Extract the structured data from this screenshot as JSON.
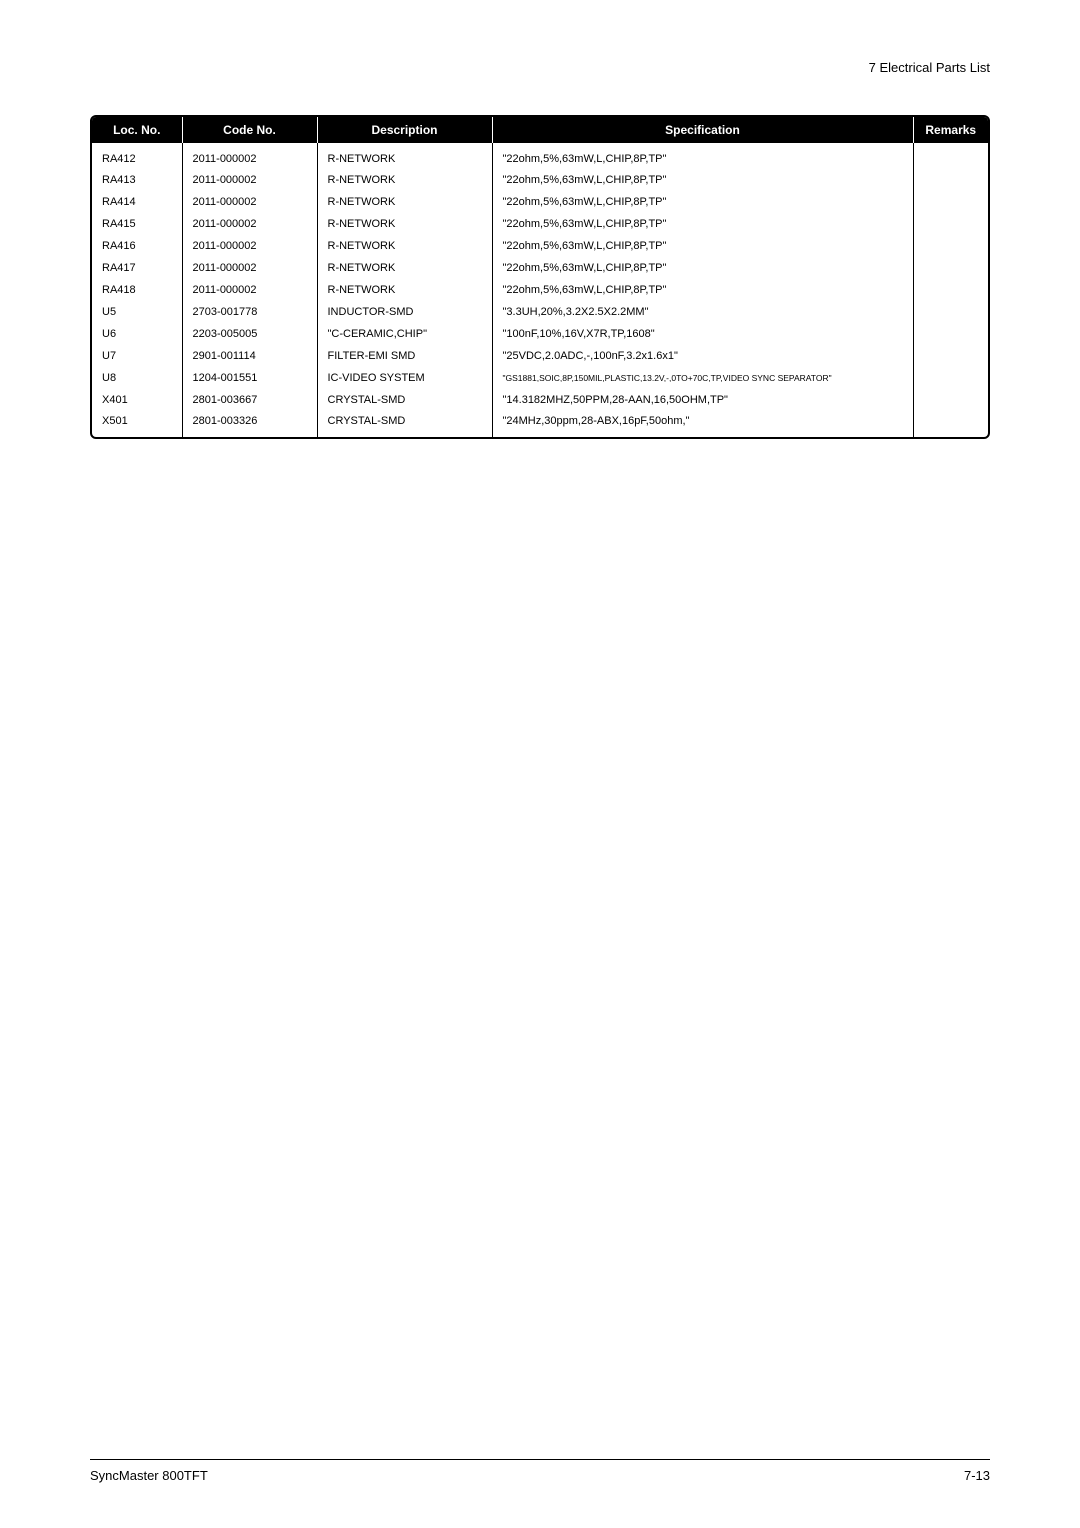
{
  "header": {
    "section_title": "7 Electrical Parts List"
  },
  "table": {
    "columns": {
      "loc": "Loc. No.",
      "code": "Code No.",
      "desc": "Description",
      "spec": "Specification",
      "remarks": "Remarks"
    },
    "rows": [
      {
        "loc": "RA412",
        "code": "2011-000002",
        "desc": "R-NETWORK",
        "spec": "\"22ohm,5%,63mW,L,CHIP,8P,TP\"",
        "remarks": "",
        "small": false
      },
      {
        "loc": "RA413",
        "code": "2011-000002",
        "desc": "R-NETWORK",
        "spec": "\"22ohm,5%,63mW,L,CHIP,8P,TP\"",
        "remarks": "",
        "small": false
      },
      {
        "loc": "RA414",
        "code": "2011-000002",
        "desc": "R-NETWORK",
        "spec": "\"22ohm,5%,63mW,L,CHIP,8P,TP\"",
        "remarks": "",
        "small": false
      },
      {
        "loc": "RA415",
        "code": "2011-000002",
        "desc": "R-NETWORK",
        "spec": "\"22ohm,5%,63mW,L,CHIP,8P,TP\"",
        "remarks": "",
        "small": false
      },
      {
        "loc": "RA416",
        "code": "2011-000002",
        "desc": "R-NETWORK",
        "spec": "\"22ohm,5%,63mW,L,CHIP,8P,TP\"",
        "remarks": "",
        "small": false
      },
      {
        "loc": "RA417",
        "code": "2011-000002",
        "desc": "R-NETWORK",
        "spec": "\"22ohm,5%,63mW,L,CHIP,8P,TP\"",
        "remarks": "",
        "small": false
      },
      {
        "loc": "RA418",
        "code": "2011-000002",
        "desc": "R-NETWORK",
        "spec": "\"22ohm,5%,63mW,L,CHIP,8P,TP\"",
        "remarks": "",
        "small": false
      },
      {
        "loc": "U5",
        "code": "2703-001778",
        "desc": "INDUCTOR-SMD",
        "spec": "\"3.3UH,20%,3.2X2.5X2.2MM\"",
        "remarks": "",
        "small": false
      },
      {
        "loc": "U6",
        "code": "2203-005005",
        "desc": "\"C-CERAMIC,CHIP\"",
        "spec": "\"100nF,10%,16V,X7R,TP,1608\"",
        "remarks": "",
        "small": false
      },
      {
        "loc": "U7",
        "code": "2901-001114",
        "desc": "FILTER-EMI SMD",
        "spec": "\"25VDC,2.0ADC,-,100nF,3.2x1.6x1\"",
        "remarks": "",
        "small": false
      },
      {
        "loc": "U8",
        "code": "1204-001551",
        "desc": "IC-VIDEO SYSTEM",
        "spec": "\"GS1881,SOIC,8P,150MIL,PLASTIC,13.2V,-,0TO+70C,TP,VIDEO SYNC SEPARATOR\"",
        "remarks": "",
        "small": true
      },
      {
        "loc": "X401",
        "code": "2801-003667",
        "desc": "CRYSTAL-SMD",
        "spec": "\"14.3182MHZ,50PPM,28-AAN,16,50OHM,TP\"",
        "remarks": "",
        "small": false
      },
      {
        "loc": "X501",
        "code": "2801-003326",
        "desc": "CRYSTAL-SMD",
        "spec": "\"24MHz,30ppm,28-ABX,16pF,50ohm,\"",
        "remarks": "",
        "small": false
      }
    ]
  },
  "footer": {
    "product": "SyncMaster 800TFT",
    "page": "7-13"
  }
}
